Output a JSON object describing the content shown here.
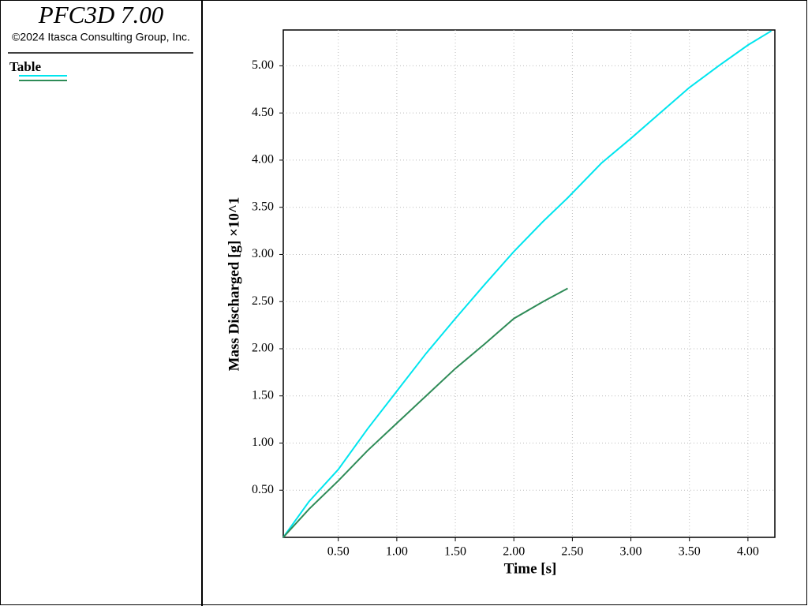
{
  "header": {
    "title": "PFC3D 7.00",
    "copyright": "©2024 Itasca Consulting Group, Inc."
  },
  "legend": {
    "title": "Table"
  },
  "chart_data": {
    "type": "line",
    "x_label": "Time [s]",
    "y_label": "Mass Discharged [g] ×10^1",
    "x": [
      0.03,
      0.25,
      0.5,
      0.75,
      1.0,
      1.25,
      1.5,
      1.75,
      2.0,
      2.25,
      2.46,
      2.75,
      3.0,
      3.25,
      3.5,
      3.75,
      4.0,
      4.2
    ],
    "series": [
      {
        "color": "#00e5ee",
        "values": [
          0,
          0.38,
          0.72,
          1.15,
          1.55,
          1.95,
          2.32,
          2.68,
          3.03,
          3.35,
          3.6,
          3.97,
          4.23,
          4.5,
          4.77,
          5.0,
          5.22,
          5.37
        ]
      },
      {
        "color": "#2e8b57",
        "values": [
          0,
          0.3,
          0.6,
          0.92,
          1.21,
          1.5,
          1.79,
          2.05,
          2.32,
          2.5,
          2.64,
          null,
          null,
          null,
          null,
          null,
          null,
          null
        ]
      }
    ],
    "xlim": [
      0.03,
      4.23
    ],
    "ylim": [
      0,
      5.38
    ],
    "xticks": [
      {
        "value": 0.5,
        "label": "0.50"
      },
      {
        "value": 1,
        "label": "1.00"
      },
      {
        "value": 1.5,
        "label": "1.50"
      },
      {
        "value": 2,
        "label": "2.00"
      },
      {
        "value": 2.5,
        "label": "2.50"
      },
      {
        "value": 3,
        "label": "3.00"
      },
      {
        "value": 3.5,
        "label": "3.50"
      },
      {
        "value": 4,
        "label": "4.00"
      }
    ],
    "yticks": [
      {
        "value": 0.5,
        "label": "0.50"
      },
      {
        "value": 1,
        "label": "1.00"
      },
      {
        "value": 1.5,
        "label": "1.50"
      },
      {
        "value": 2,
        "label": "2.00"
      },
      {
        "value": 2.5,
        "label": "2.50"
      },
      {
        "value": 3,
        "label": "3.00"
      },
      {
        "value": 3.5,
        "label": "3.50"
      },
      {
        "value": 4,
        "label": "4.00"
      },
      {
        "value": 4.5,
        "label": "4.50"
      },
      {
        "value": 5,
        "label": "5.00"
      }
    ],
    "grid": true
  }
}
